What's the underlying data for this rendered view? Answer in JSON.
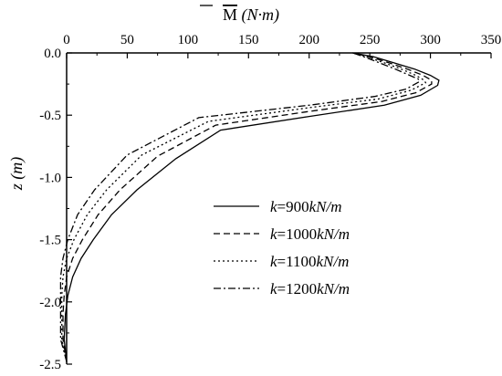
{
  "chart_data": {
    "type": "line",
    "xlabel": "M̅ (N·m)",
    "ylabel": "z (m)",
    "xlim": [
      0,
      350
    ],
    "ylim": [
      -2.5,
      0
    ],
    "x_ticks": [
      0,
      50,
      100,
      150,
      200,
      250,
      300,
      350
    ],
    "y_ticks": [
      0.0,
      -0.5,
      -1.0,
      -1.5,
      -2.0,
      -2.5
    ],
    "x_axis_position": "top",
    "grid": false,
    "legend_position": "right-middle",
    "series": [
      {
        "name": "k=900kN/m",
        "style": "solid",
        "points": [
          [
            0,
            -2.48
          ],
          [
            -2,
            -2.3
          ],
          [
            -1,
            -2.1
          ],
          [
            1,
            -1.95
          ],
          [
            5,
            -1.8
          ],
          [
            12,
            -1.65
          ],
          [
            22,
            -1.5
          ],
          [
            37,
            -1.3
          ],
          [
            58,
            -1.1
          ],
          [
            90,
            -0.85
          ],
          [
            127,
            -0.62
          ],
          [
            200,
            -0.51
          ],
          [
            262,
            -0.42
          ],
          [
            292,
            -0.34
          ],
          [
            306,
            -0.26
          ],
          [
            307,
            -0.22
          ],
          [
            300,
            -0.18
          ],
          [
            287,
            -0.13
          ],
          [
            270,
            -0.08
          ],
          [
            253,
            -0.03
          ],
          [
            236,
            0.0
          ]
        ]
      },
      {
        "name": "k=1000kN/m",
        "style": "dashed",
        "points": [
          [
            0,
            -2.48
          ],
          [
            -3,
            -2.3
          ],
          [
            -3,
            -2.1
          ],
          [
            -2,
            -1.95
          ],
          [
            0,
            -1.8
          ],
          [
            5,
            -1.65
          ],
          [
            13,
            -1.5
          ],
          [
            26,
            -1.3
          ],
          [
            44,
            -1.1
          ],
          [
            75,
            -0.83
          ],
          [
            123,
            -0.58
          ],
          [
            200,
            -0.47
          ],
          [
            260,
            -0.39
          ],
          [
            288,
            -0.32
          ],
          [
            301,
            -0.25
          ],
          [
            301,
            -0.22
          ],
          [
            294,
            -0.18
          ],
          [
            281,
            -0.13
          ],
          [
            266,
            -0.08
          ],
          [
            250,
            -0.03
          ],
          [
            236,
            0.0
          ]
        ]
      },
      {
        "name": "k=1100kN/m",
        "style": "dotted",
        "points": [
          [
            0,
            -2.48
          ],
          [
            -4,
            -2.3
          ],
          [
            -4,
            -2.1
          ],
          [
            -4,
            -1.95
          ],
          [
            -3,
            -1.8
          ],
          [
            0,
            -1.65
          ],
          [
            6,
            -1.5
          ],
          [
            17,
            -1.3
          ],
          [
            33,
            -1.1
          ],
          [
            62,
            -0.82
          ],
          [
            117,
            -0.55
          ],
          [
            200,
            -0.44
          ],
          [
            257,
            -0.37
          ],
          [
            284,
            -0.3
          ],
          [
            296,
            -0.24
          ],
          [
            295,
            -0.22
          ],
          [
            288,
            -0.18
          ],
          [
            276,
            -0.13
          ],
          [
            262,
            -0.08
          ],
          [
            247,
            -0.03
          ],
          [
            236,
            0.0
          ]
        ]
      },
      {
        "name": "k=1200kN/m",
        "style": "dashdot",
        "points": [
          [
            0,
            -2.48
          ],
          [
            -5,
            -2.3
          ],
          [
            -5,
            -2.1
          ],
          [
            -5,
            -1.95
          ],
          [
            -5,
            -1.8
          ],
          [
            -3,
            -1.65
          ],
          [
            1,
            -1.5
          ],
          [
            9,
            -1.3
          ],
          [
            23,
            -1.1
          ],
          [
            50,
            -0.82
          ],
          [
            109,
            -0.52
          ],
          [
            200,
            -0.42
          ],
          [
            254,
            -0.35
          ],
          [
            280,
            -0.29
          ],
          [
            291,
            -0.23
          ],
          [
            290,
            -0.21
          ],
          [
            283,
            -0.18
          ],
          [
            271,
            -0.13
          ],
          [
            258,
            -0.08
          ],
          [
            245,
            -0.03
          ],
          [
            236,
            0.0
          ]
        ]
      }
    ],
    "legend": {
      "entries": [
        {
          "prefix": "k",
          "suffix": "=900",
          "unit": "kN/m"
        },
        {
          "prefix": "k",
          "suffix": "=1000",
          "unit": "kN/m"
        },
        {
          "prefix": "k",
          "suffix": "=1100",
          "unit": "kN/m"
        },
        {
          "prefix": "k",
          "suffix": "=1200",
          "unit": "kN/m"
        }
      ]
    },
    "colors": {
      "line": "#000000",
      "axis": "#000000",
      "background": "#ffffff"
    }
  }
}
